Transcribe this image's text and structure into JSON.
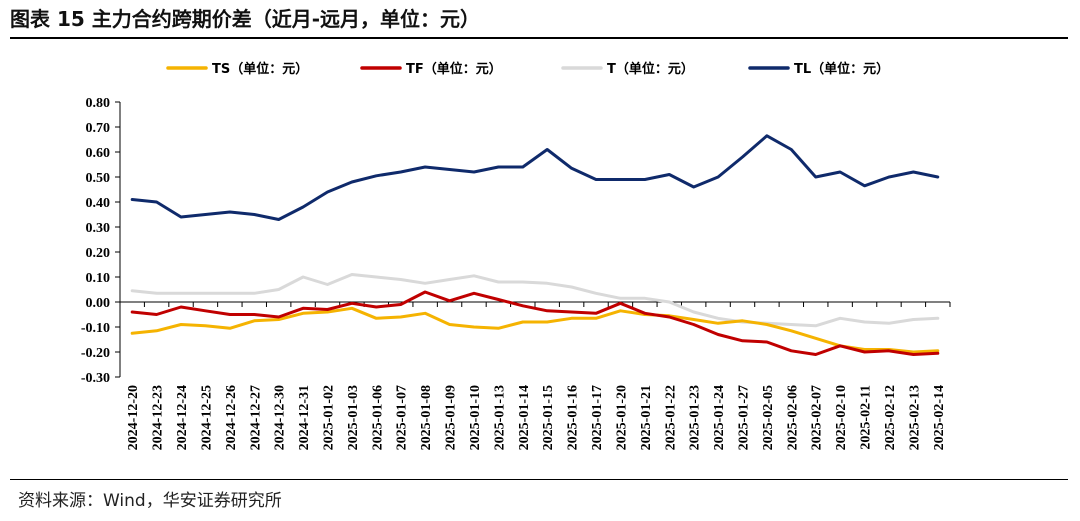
{
  "figure": {
    "title": "图表 15  主力合约跨期价差（近月-远月，单位：元）",
    "source": "资料来源：Wind，华安证券研究所"
  },
  "chart_data": {
    "type": "line",
    "ylim": [
      -0.3,
      0.8
    ],
    "yticks": [
      "0.80",
      "0.70",
      "0.60",
      "0.50",
      "0.40",
      "0.30",
      "0.20",
      "0.10",
      "0.00",
      "-0.10",
      "-0.20",
      "-0.30"
    ],
    "ytick_values": [
      0.8,
      0.7,
      0.6,
      0.5,
      0.4,
      0.3,
      0.2,
      0.1,
      0.0,
      -0.1,
      -0.2,
      -0.3
    ],
    "grid": false,
    "legend_position": "top",
    "categories": [
      "2024-12-20",
      "2024-12-23",
      "2024-12-24",
      "2024-12-25",
      "2024-12-26",
      "2024-12-27",
      "2024-12-30",
      "2024-12-31",
      "2025-01-02",
      "2025-01-03",
      "2025-01-06",
      "2025-01-07",
      "2025-01-08",
      "2025-01-09",
      "2025-01-10",
      "2025-01-13",
      "2025-01-14",
      "2025-01-15",
      "2025-01-16",
      "2025-01-17",
      "2025-01-20",
      "2025-01-21",
      "2025-01-22",
      "2025-01-23",
      "2025-01-24",
      "2025-01-27",
      "2025-02-05",
      "2025-02-06",
      "2025-02-07",
      "2025-02-10",
      "2025-02-11",
      "2025-02-12",
      "2025-02-13",
      "2025-02-14"
    ],
    "series": [
      {
        "name": "TS（单位：元）",
        "color": "#F5B301",
        "values": [
          -0.125,
          -0.115,
          -0.09,
          -0.095,
          -0.105,
          -0.075,
          -0.07,
          -0.045,
          -0.04,
          -0.025,
          -0.065,
          -0.06,
          -0.045,
          -0.09,
          -0.1,
          -0.105,
          -0.08,
          -0.08,
          -0.065,
          -0.065,
          -0.035,
          -0.05,
          -0.055,
          -0.07,
          -0.085,
          -0.075,
          -0.09,
          -0.115,
          -0.145,
          -0.175,
          -0.19,
          -0.19,
          -0.2,
          -0.195
        ]
      },
      {
        "name": "TF（单位：元）",
        "color": "#C00000",
        "values": [
          -0.04,
          -0.05,
          -0.02,
          -0.035,
          -0.05,
          -0.05,
          -0.06,
          -0.025,
          -0.03,
          -0.005,
          -0.02,
          -0.01,
          0.04,
          0.005,
          0.035,
          0.01,
          -0.015,
          -0.035,
          -0.04,
          -0.045,
          -0.005,
          -0.045,
          -0.06,
          -0.09,
          -0.13,
          -0.155,
          -0.16,
          -0.195,
          -0.21,
          -0.175,
          -0.2,
          -0.195,
          -0.21,
          -0.205
        ]
      },
      {
        "name": "T（单位：元）",
        "color": "#D9D9D9",
        "values": [
          0.045,
          0.035,
          0.035,
          0.035,
          0.035,
          0.035,
          0.05,
          0.1,
          0.07,
          0.11,
          0.1,
          0.09,
          0.075,
          0.09,
          0.105,
          0.08,
          0.08,
          0.075,
          0.06,
          0.035,
          0.015,
          0.015,
          0.0,
          -0.04,
          -0.065,
          -0.08,
          -0.085,
          -0.09,
          -0.095,
          -0.065,
          -0.08,
          -0.085,
          -0.07,
          -0.065
        ]
      },
      {
        "name": "TL（单位：元）",
        "color": "#0F2A6B",
        "values": [
          0.41,
          0.4,
          0.34,
          0.35,
          0.36,
          0.35,
          0.33,
          0.38,
          0.44,
          0.48,
          0.505,
          0.52,
          0.54,
          0.53,
          0.52,
          0.54,
          0.54,
          0.61,
          0.535,
          0.49,
          0.49,
          0.49,
          0.51,
          0.46,
          0.5,
          0.58,
          0.665,
          0.61,
          0.5,
          0.52,
          0.465,
          0.5,
          0.52,
          0.5
        ]
      }
    ]
  }
}
